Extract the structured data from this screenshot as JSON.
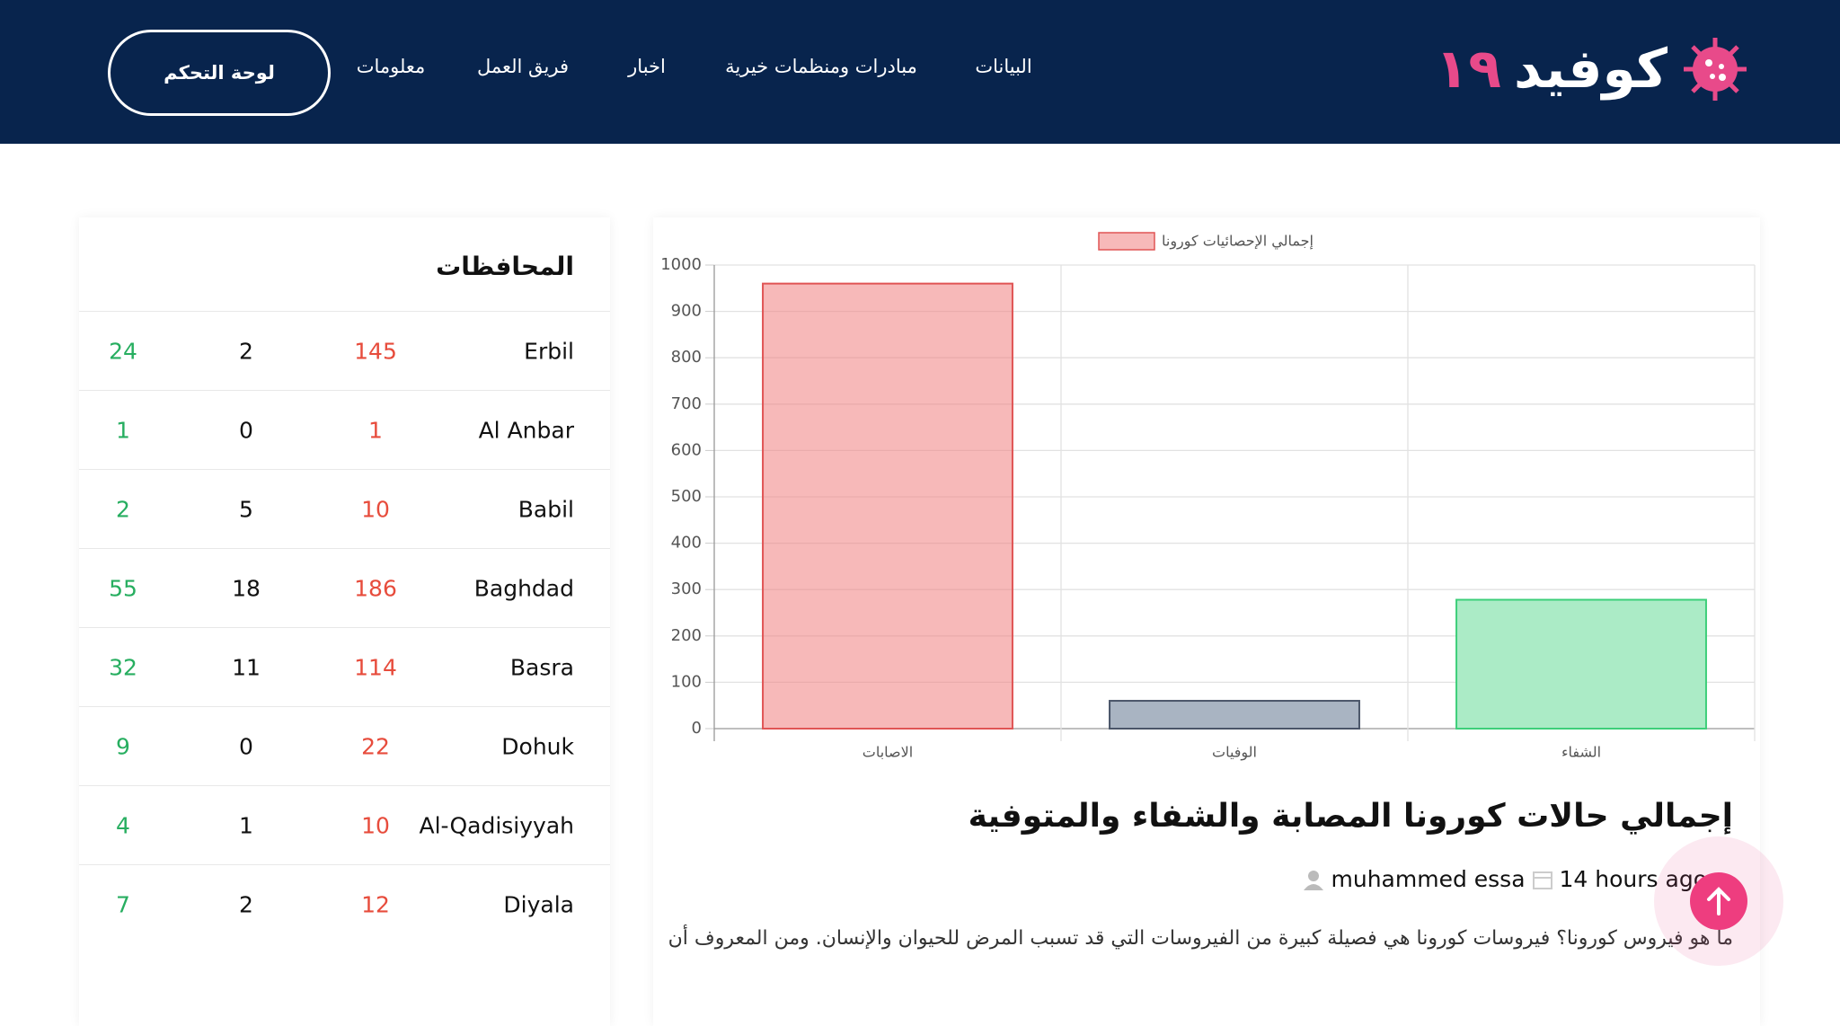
{
  "logo": {
    "name": "كوفيد",
    "number": "١٩"
  },
  "nav": [
    "البيانات",
    "مبادرات ومنظمات خيرية",
    "اخبار",
    "فريق العمل",
    "معلومات"
  ],
  "dashboard_button": "لوحة التحكم",
  "provinces": {
    "title": "المحافظات",
    "rows": [
      [
        "Erbil",
        "145",
        "2",
        "24"
      ],
      [
        "Al Anbar",
        "1",
        "0",
        "1"
      ],
      [
        "Babil",
        "10",
        "5",
        "2"
      ],
      [
        "Baghdad",
        "186",
        "18",
        "55"
      ],
      [
        "Basra",
        "114",
        "11",
        "32"
      ],
      [
        "Dohuk",
        "22",
        "0",
        "9"
      ],
      [
        "Al-Qadisiyyah",
        "10",
        "1",
        "4"
      ],
      [
        "Diyala",
        "12",
        "2",
        "7"
      ]
    ]
  },
  "chart_data": {
    "type": "bar",
    "categories": [
      "الاصابات",
      "الوفيات",
      "الشفاء"
    ],
    "series": [
      {
        "name": "إجمالي الإحصائيات كورونا",
        "values": [
          960,
          60,
          278
        ],
        "colors": [
          "rgba(240,128,128,0.55)",
          "#a9b4c2",
          "#abebc6"
        ],
        "border_colors": [
          "#e05555",
          "#4a5568",
          "#3ecf7a"
        ]
      }
    ],
    "ylim": [
      0,
      1000
    ],
    "yticks": [
      0,
      100,
      200,
      300,
      400,
      500,
      600,
      700,
      800,
      900,
      1000
    ],
    "grid": true
  },
  "post": {
    "title": "إجمالي حالات كورونا المصابة والشفاء والمتوفية",
    "author": "muhammed essa",
    "time": "14 hours ago",
    "excerpt": "ما هو فيروس كورونا؟ فيروسات كورونا هي فصيلة كبيرة من الفيروسات التي قد تسبب المرض للحيوان والإنسان. ومن المعروف أن"
  }
}
